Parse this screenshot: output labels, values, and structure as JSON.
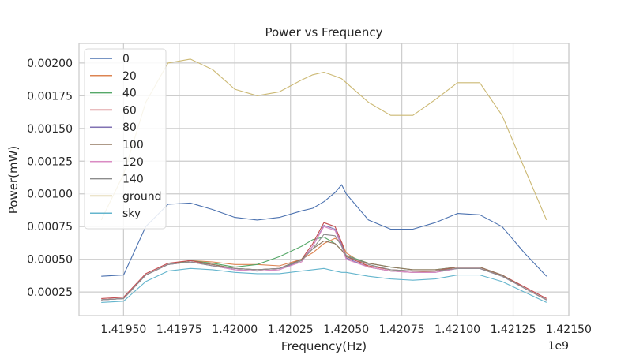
{
  "chart_data": {
    "type": "line",
    "title": "Power vs Frequency",
    "xlabel": "Frequency(Hz)",
    "ylabel": "Power(mW)",
    "x_offset_label": "1e9",
    "xlim": [
      1.4193,
      1.4215
    ],
    "ylim": [
      7e-05,
      0.00215
    ],
    "xticks": [
      "1.41950",
      "1.41975",
      "1.42000",
      "1.42025",
      "1.42050",
      "1.42075",
      "1.42100",
      "1.42125",
      "1.42150"
    ],
    "yticks": [
      "0.00025",
      "0.00050",
      "0.00075",
      "0.00100",
      "0.00125",
      "0.00150",
      "0.00175",
      "0.00200"
    ],
    "grid": true,
    "legend_position": "upper-left",
    "x": [
      1.4194,
      1.4195,
      1.4196,
      1.4197,
      1.4198,
      1.4199,
      1.42,
      1.4201,
      1.4202,
      1.4203,
      1.42035,
      1.4204,
      1.42045,
      1.42048,
      1.4205,
      1.4206,
      1.4207,
      1.4208,
      1.4209,
      1.421,
      1.4211,
      1.4212,
      1.4213,
      1.4214
    ],
    "series": [
      {
        "name": "0",
        "color": "#4c72b0",
        "values": [
          0.00037,
          0.00038,
          0.00075,
          0.00092,
          0.00093,
          0.00088,
          0.00082,
          0.0008,
          0.00082,
          0.00087,
          0.00089,
          0.00094,
          0.00101,
          0.00107,
          0.001,
          0.0008,
          0.00073,
          0.00073,
          0.00078,
          0.00085,
          0.00084,
          0.00075,
          0.00055,
          0.00037
        ]
      },
      {
        "name": "20",
        "color": "#dd8452",
        "values": [
          0.00019,
          0.0002,
          0.00038,
          0.00046,
          0.00049,
          0.00048,
          0.00046,
          0.00046,
          0.00045,
          0.0005,
          0.00055,
          0.00062,
          0.00066,
          0.00063,
          0.00055,
          0.00044,
          0.00041,
          0.0004,
          0.00041,
          0.00043,
          0.00043,
          0.00038,
          0.00028,
          0.00019
        ]
      },
      {
        "name": "40",
        "color": "#55a868",
        "values": [
          0.00019,
          0.0002,
          0.00038,
          0.00046,
          0.00049,
          0.00047,
          0.00044,
          0.00046,
          0.00052,
          0.0006,
          0.00065,
          0.00067,
          0.00062,
          0.00057,
          0.00053,
          0.00047,
          0.00044,
          0.00042,
          0.00042,
          0.00044,
          0.00044,
          0.00038,
          0.00028,
          0.00019
        ]
      },
      {
        "name": "60",
        "color": "#c44e52",
        "values": [
          0.0002,
          0.00021,
          0.00039,
          0.00047,
          0.00049,
          0.00046,
          0.00043,
          0.00042,
          0.00043,
          0.0005,
          0.00062,
          0.00078,
          0.00075,
          0.00063,
          0.00052,
          0.00045,
          0.00042,
          0.00041,
          0.00041,
          0.00044,
          0.00044,
          0.00038,
          0.00029,
          0.0002
        ]
      },
      {
        "name": "80",
        "color": "#8172b3",
        "values": [
          0.00019,
          0.0002,
          0.00038,
          0.00046,
          0.00048,
          0.00045,
          0.00042,
          0.00041,
          0.00042,
          0.00049,
          0.0006,
          0.00076,
          0.00073,
          0.00061,
          0.00051,
          0.00044,
          0.00041,
          0.0004,
          0.0004,
          0.00043,
          0.00043,
          0.00037,
          0.00028,
          0.00019
        ]
      },
      {
        "name": "100",
        "color": "#937860",
        "values": [
          0.00019,
          0.0002,
          0.00038,
          0.00046,
          0.00048,
          0.00046,
          0.00043,
          0.00042,
          0.00043,
          0.0005,
          0.00058,
          0.00064,
          0.00062,
          0.00057,
          0.00052,
          0.00047,
          0.00044,
          0.00042,
          0.00042,
          0.00044,
          0.00044,
          0.00038,
          0.00028,
          0.00019
        ]
      },
      {
        "name": "120",
        "color": "#da8bc3",
        "values": [
          0.00019,
          0.0002,
          0.00038,
          0.00046,
          0.00048,
          0.00045,
          0.00042,
          0.00041,
          0.00042,
          0.00048,
          0.0006,
          0.00075,
          0.00072,
          0.0006,
          0.0005,
          0.00044,
          0.00041,
          0.0004,
          0.0004,
          0.00043,
          0.00043,
          0.00037,
          0.00028,
          0.00019
        ]
      },
      {
        "name": "140",
        "color": "#8c8c8c",
        "values": [
          0.00019,
          0.0002,
          0.00038,
          0.00046,
          0.00048,
          0.00045,
          0.00043,
          0.00042,
          0.00043,
          0.00049,
          0.00058,
          0.00069,
          0.00068,
          0.0006,
          0.00053,
          0.00046,
          0.00042,
          0.00041,
          0.00041,
          0.00043,
          0.00043,
          0.00037,
          0.00028,
          0.00019
        ]
      },
      {
        "name": "ground",
        "color": "#ccb974",
        "values": [
          0.0008,
          0.00115,
          0.0017,
          0.002,
          0.00203,
          0.00195,
          0.0018,
          0.00175,
          0.00178,
          0.00187,
          0.00191,
          0.00193,
          0.0019,
          0.00188,
          0.00185,
          0.0017,
          0.0016,
          0.0016,
          0.00172,
          0.00185,
          0.00185,
          0.0016,
          0.0012,
          0.0008
        ]
      },
      {
        "name": "sky",
        "color": "#64b5cd",
        "values": [
          0.00017,
          0.00018,
          0.00033,
          0.00041,
          0.00043,
          0.00042,
          0.0004,
          0.00039,
          0.00039,
          0.00041,
          0.00042,
          0.00043,
          0.00041,
          0.0004,
          0.0004,
          0.00037,
          0.00035,
          0.00034,
          0.00035,
          0.00038,
          0.00038,
          0.00033,
          0.00025,
          0.00017
        ]
      }
    ]
  }
}
